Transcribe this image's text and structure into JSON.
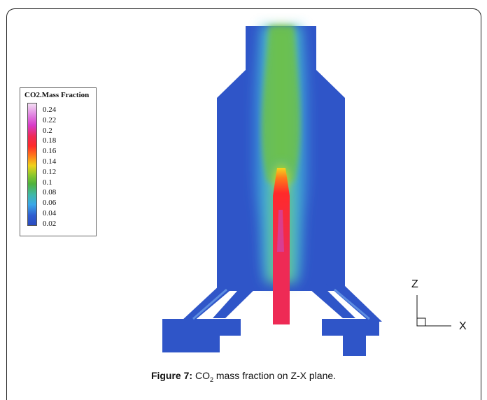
{
  "legend": {
    "title": "CO2.Mass Fraction",
    "ticks": [
      "0.24",
      "0.22",
      "0.2",
      "0.18",
      "0.16",
      "0.14",
      "0.12",
      "0.1",
      "0.08",
      "0.06",
      "0.04",
      "0.02"
    ]
  },
  "axes": {
    "z_label": "Z",
    "x_label": "X"
  },
  "caption": {
    "prefix": "Figure 7:",
    "co": " CO",
    "sub": "2",
    "rest": " mass fraction on Z-X plane."
  },
  "colors": {
    "domain_blue": "#2f55c8",
    "flame_core": "#e8246a",
    "plume_green": "#6cc04a"
  }
}
